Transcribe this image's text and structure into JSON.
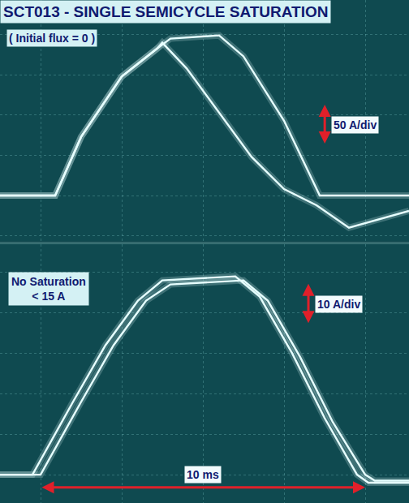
{
  "chart_data": [
    {
      "type": "line",
      "title": "SCT013 - SINGLE SEMICYCLE SATURATION",
      "subtitle": "( Initial flux = 0 )",
      "xlim": [
        -1.25,
        11.35
      ],
      "xticks": [
        0,
        2.5,
        5,
        7.5,
        10
      ],
      "ylim": [
        -57,
        243
      ],
      "yticks": [
        -50,
        0,
        50,
        100,
        150,
        200
      ],
      "grid": true,
      "tick_labels": false,
      "color": "#e6ffff",
      "series": [
        {
          "x": [
            -1.25,
            0.45,
            1.25,
            2.5,
            3.6,
            4.0,
            5.5,
            6.25,
            7.5,
            8.6,
            11.35
          ],
          "values": [
            0,
            0,
            73,
            148,
            183,
            195,
            199,
            173,
            93,
            0,
            0
          ]
        },
        {
          "x": [
            -1.25,
            0.45,
            1.25,
            2.5,
            3.6,
            3.75,
            4.5,
            5.5,
            6.5,
            7.5,
            8.5,
            9.5,
            10.5,
            11.35
          ],
          "values": [
            0,
            0,
            73,
            148,
            183,
            190,
            158,
            103,
            48,
            8,
            -12,
            -40,
            -29,
            -19
          ]
        }
      ],
      "annotations": [
        {
          "text": "50 A/div",
          "span": 50
        }
      ]
    },
    {
      "type": "line",
      "xlim": [
        -1.25,
        11.35
      ],
      "xticks": [
        0,
        2.5,
        5,
        7.5,
        10
      ],
      "ylim": [
        -7,
        57
      ],
      "yticks": [
        0,
        10,
        20,
        30,
        40,
        50
      ],
      "grid": true,
      "tick_labels": false,
      "color": "#e6ffff",
      "series": [
        {
          "x": [
            -1.25,
            -0.25,
            1.0,
            2.0,
            3.0,
            3.75,
            6.0,
            6.75,
            7.75,
            8.75,
            9.75,
            10.1,
            11.35
          ],
          "values": [
            0,
            0,
            18,
            32,
            43,
            48,
            49,
            44,
            30,
            14,
            0,
            -2,
            -2
          ]
        },
        {
          "x": [
            -1.25,
            0.0,
            1.25,
            2.25,
            3.25,
            4.0,
            6.25,
            7.0,
            8.0,
            9.0,
            10.0,
            10.3,
            11.35
          ],
          "values": [
            0,
            0,
            18,
            32,
            43,
            47,
            48,
            43,
            29,
            13,
            0,
            -1.5,
            -1.5
          ]
        }
      ],
      "annotations": [
        {
          "text": "No Saturation\n< 15 A"
        },
        {
          "text": "10 A/div",
          "span": 10
        },
        {
          "text": "10 ms",
          "from": 0,
          "to": 10
        }
      ]
    }
  ]
}
